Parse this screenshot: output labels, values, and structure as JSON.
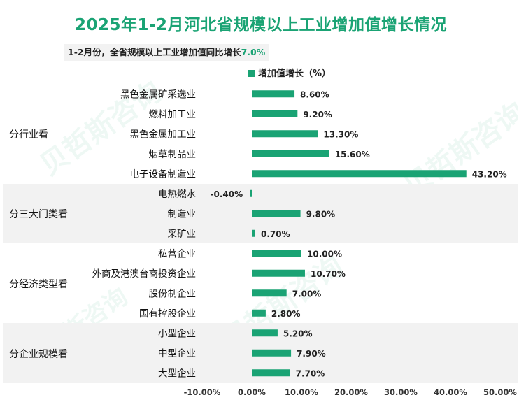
{
  "title": "2025年1-2月河北省规模以上工业增加值增长情况",
  "subtitle": {
    "text": "1-2月份，全省规模以上工业增加值同比增长",
    "value": "7.0%"
  },
  "watermark": "贝哲斯咨询",
  "colors": {
    "bar": "#1aa374",
    "title": "#1aa374",
    "band": "#f2f2f2"
  },
  "chart_data": {
    "type": "bar",
    "orientation": "horizontal",
    "title": "2025年1-2月河北省规模以上工业增加值增长情况",
    "legend": "增加值增长（%）",
    "xlim": [
      -10,
      50
    ],
    "xticks": [
      "-10.00%",
      "0.00%",
      "10.00%",
      "20.00%",
      "30.00%",
      "40.00%",
      "50.00%"
    ],
    "groups": [
      {
        "name": "分行业看",
        "shaded": false,
        "items": [
          {
            "label": "黑色金属矿采选业",
            "value": 8.6,
            "text": "8.60%"
          },
          {
            "label": "燃料加工业",
            "value": 9.2,
            "text": "9.20%"
          },
          {
            "label": "黑色金属加工业",
            "value": 13.3,
            "text": "13.30%"
          },
          {
            "label": "烟草制品业",
            "value": 15.6,
            "text": "15.60%"
          },
          {
            "label": "电子设备制造业",
            "value": 43.2,
            "text": "43.20%"
          }
        ]
      },
      {
        "name": "分三大门类看",
        "shaded": true,
        "items": [
          {
            "label": "电热燃水",
            "value": -0.4,
            "text": "-0.40%"
          },
          {
            "label": "制造业",
            "value": 9.8,
            "text": "9.80%"
          },
          {
            "label": "采矿业",
            "value": 0.7,
            "text": "0.70%"
          }
        ]
      },
      {
        "name": "分经济类型看",
        "shaded": false,
        "items": [
          {
            "label": "私营企业",
            "value": 10.0,
            "text": "10.00%"
          },
          {
            "label": "外商及港澳台商投资企业",
            "value": 10.7,
            "text": "10.70%"
          },
          {
            "label": "股份制企业",
            "value": 7.0,
            "text": "7.00%"
          },
          {
            "label": "国有控股企业",
            "value": 2.8,
            "text": "2.80%"
          }
        ]
      },
      {
        "name": "分企业规模看",
        "shaded": true,
        "items": [
          {
            "label": "小型企业",
            "value": 5.2,
            "text": "5.20%"
          },
          {
            "label": "中型企业",
            "value": 7.9,
            "text": "7.90%"
          },
          {
            "label": "大型企业",
            "value": 7.7,
            "text": "7.70%"
          }
        ]
      }
    ]
  }
}
